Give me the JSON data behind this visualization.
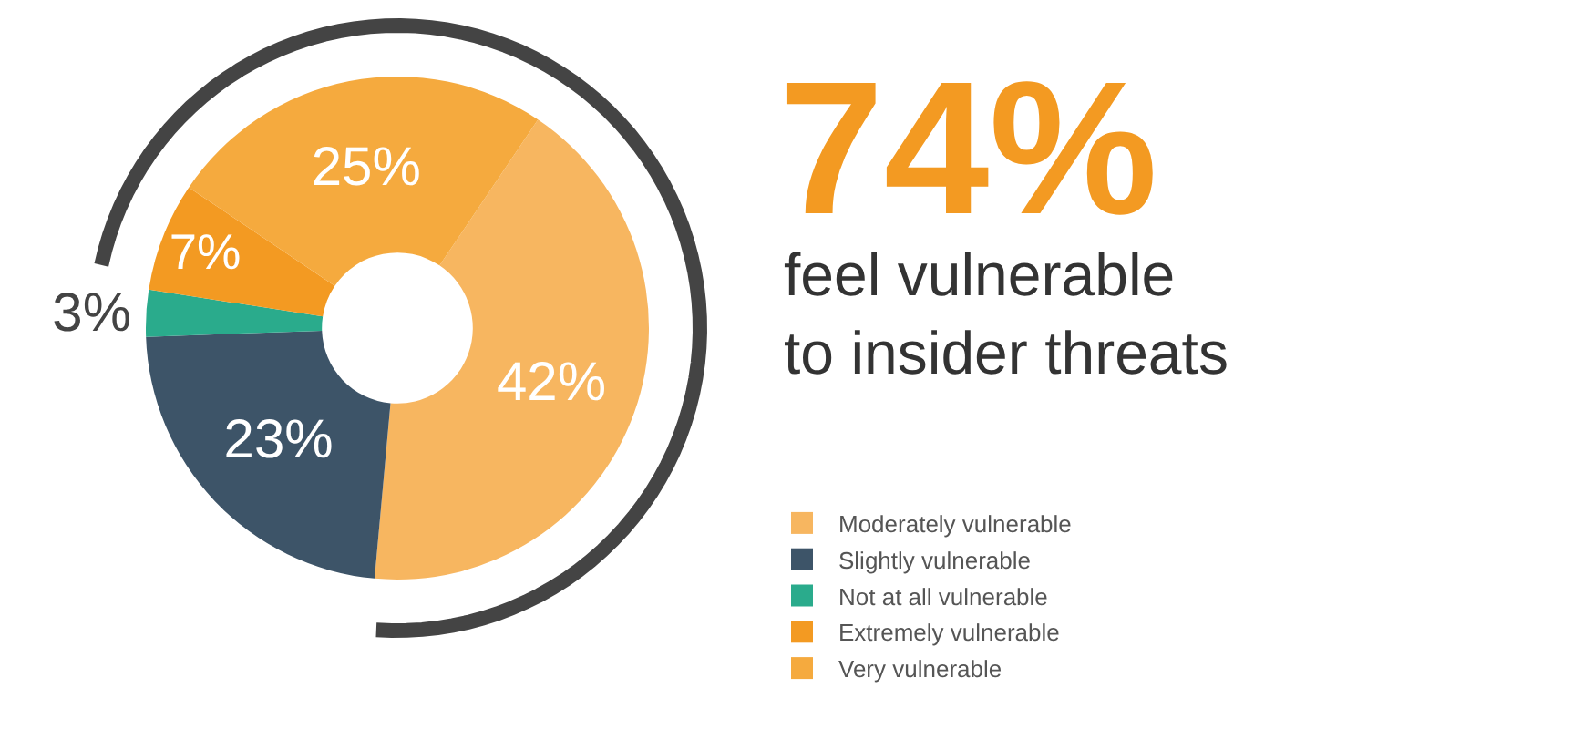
{
  "chart_data": {
    "type": "donut",
    "title": "74%",
    "subtitle": "feel vulnerable\nto insider threats",
    "categories": [
      "Moderately vulnerable",
      "Slightly vulnerable",
      "Not at all vulnerable",
      "Extremely vulnerable",
      "Very vulnerable"
    ],
    "values": [
      42,
      23,
      3,
      7,
      25
    ],
    "value_labels": [
      "42%",
      "23%",
      "3%",
      "7%",
      "25%"
    ],
    "colors": [
      "#f7b660",
      "#3d5468",
      "#2aab8c",
      "#f39a22",
      "#f5aa3e"
    ],
    "legend": "bottom right"
  }
}
